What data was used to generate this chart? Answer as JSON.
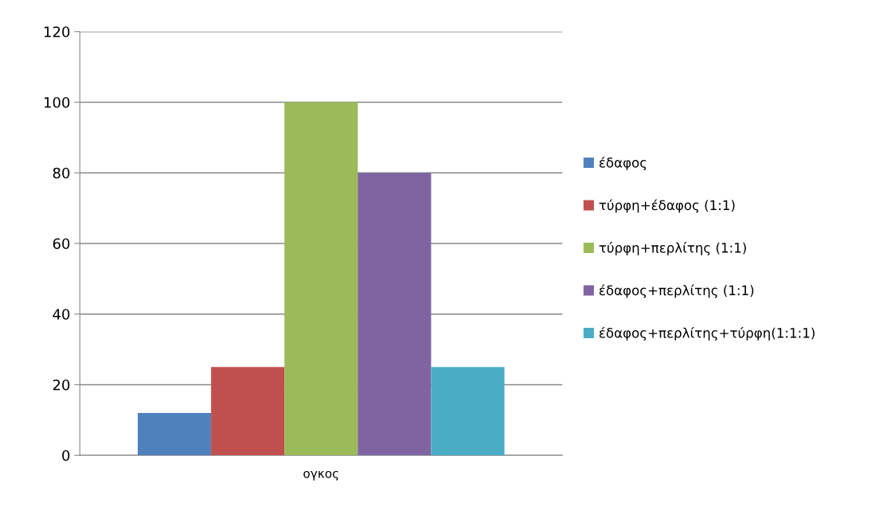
{
  "chart_data": {
    "type": "bar",
    "categories": [
      "ογκος"
    ],
    "series": [
      {
        "name": "έδαφος",
        "color": "#4f81bd",
        "values": [
          12
        ]
      },
      {
        "name": "τύρφη+έδαφος (1:1)",
        "color": "#c0504d",
        "values": [
          25
        ]
      },
      {
        "name": "τύρφη+περλίτης (1:1)",
        "color": "#9bbb59",
        "values": [
          100
        ]
      },
      {
        "name": "έδαφος+περλίτης (1:1)",
        "color": "#8064a2",
        "values": [
          80
        ]
      },
      {
        "name": "έδαφος+περλίτης+τύρφη(1:1:1)",
        "color": "#4bacc6",
        "values": [
          25
        ]
      }
    ],
    "ylim": [
      0,
      120
    ],
    "yticks": [
      0,
      20,
      40,
      60,
      80,
      100,
      120
    ],
    "grid": "y",
    "legend": "right"
  }
}
